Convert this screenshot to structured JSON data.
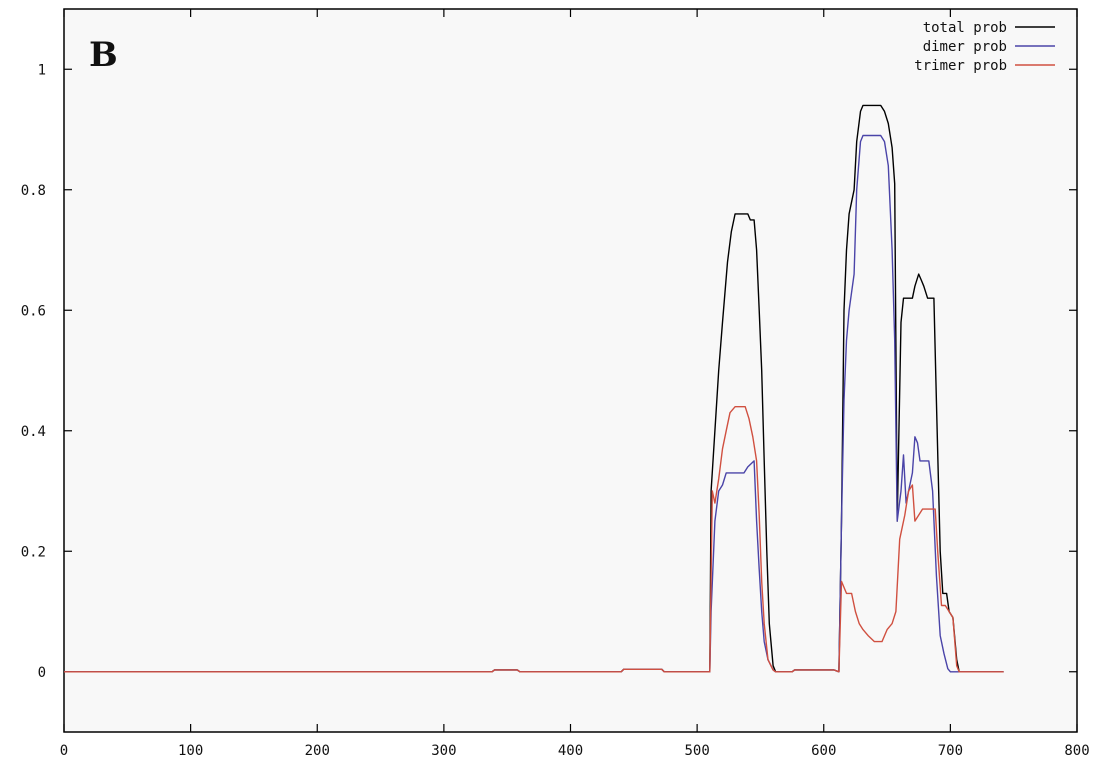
{
  "chart_data": {
    "type": "line",
    "title": "",
    "panel_label": "B",
    "xlabel": "",
    "ylabel": "",
    "xlim": [
      0,
      800
    ],
    "ylim": [
      -0.1,
      1.1
    ],
    "x_ticks": [
      0,
      100,
      200,
      300,
      400,
      500,
      600,
      700,
      800
    ],
    "x_tick_labels": [
      "0",
      "100",
      "200",
      "300",
      "400",
      "500",
      "600",
      "700",
      "800"
    ],
    "y_ticks": [
      0,
      0.2,
      0.4,
      0.6,
      0.8,
      1
    ],
    "y_tick_labels": [
      "0",
      "0.2",
      "0.4",
      "0.6",
      "0.8",
      "1"
    ],
    "grid": false,
    "legend_position": "top-right",
    "series": [
      {
        "name": "total prob",
        "color": "#000000",
        "points": [
          [
            0,
            0
          ],
          [
            338,
            0
          ],
          [
            340,
            0.003
          ],
          [
            358,
            0.003
          ],
          [
            360,
            0
          ],
          [
            440,
            0
          ],
          [
            442,
            0.004
          ],
          [
            472,
            0.004
          ],
          [
            474,
            0
          ],
          [
            510,
            0
          ],
          [
            511,
            0.3
          ],
          [
            514,
            0.4
          ],
          [
            517,
            0.5
          ],
          [
            520,
            0.58
          ],
          [
            522,
            0.63
          ],
          [
            524,
            0.68
          ],
          [
            527,
            0.73
          ],
          [
            530,
            0.76
          ],
          [
            540,
            0.76
          ],
          [
            542,
            0.75
          ],
          [
            545,
            0.75
          ],
          [
            547,
            0.7
          ],
          [
            549,
            0.6
          ],
          [
            551,
            0.5
          ],
          [
            553,
            0.35
          ],
          [
            555,
            0.2
          ],
          [
            557,
            0.08
          ],
          [
            560,
            0.01
          ],
          [
            562,
            0
          ],
          [
            575,
            0
          ],
          [
            577,
            0.003
          ],
          [
            608,
            0.003
          ],
          [
            612,
            0
          ],
          [
            614,
            0.25
          ],
          [
            616,
            0.6
          ],
          [
            618,
            0.7
          ],
          [
            620,
            0.76
          ],
          [
            622,
            0.78
          ],
          [
            624,
            0.8
          ],
          [
            626,
            0.88
          ],
          [
            629,
            0.93
          ],
          [
            631,
            0.94
          ],
          [
            645,
            0.94
          ],
          [
            648,
            0.93
          ],
          [
            651,
            0.91
          ],
          [
            654,
            0.87
          ],
          [
            656,
            0.81
          ],
          [
            658,
            0.25
          ],
          [
            661,
            0.58
          ],
          [
            663,
            0.62
          ],
          [
            670,
            0.62
          ],
          [
            672,
            0.64
          ],
          [
            675,
            0.66
          ],
          [
            677,
            0.65
          ],
          [
            679,
            0.64
          ],
          [
            682,
            0.62
          ],
          [
            687,
            0.62
          ],
          [
            689,
            0.45
          ],
          [
            692,
            0.2
          ],
          [
            694,
            0.13
          ],
          [
            697,
            0.13
          ],
          [
            699,
            0.1
          ],
          [
            702,
            0.09
          ],
          [
            705,
            0.02
          ],
          [
            707,
            0
          ],
          [
            742,
            0
          ]
        ]
      },
      {
        "name": "dimer prob",
        "color": "#4a44a8",
        "points": [
          [
            0,
            0
          ],
          [
            338,
            0
          ],
          [
            340,
            0.003
          ],
          [
            358,
            0.003
          ],
          [
            360,
            0
          ],
          [
            440,
            0
          ],
          [
            442,
            0.004
          ],
          [
            472,
            0.004
          ],
          [
            474,
            0
          ],
          [
            510,
            0
          ],
          [
            511,
            0.1
          ],
          [
            514,
            0.25
          ],
          [
            517,
            0.3
          ],
          [
            520,
            0.31
          ],
          [
            523,
            0.33
          ],
          [
            530,
            0.33
          ],
          [
            537,
            0.33
          ],
          [
            540,
            0.34
          ],
          [
            545,
            0.35
          ],
          [
            547,
            0.25
          ],
          [
            549,
            0.17
          ],
          [
            551,
            0.1
          ],
          [
            553,
            0.05
          ],
          [
            556,
            0.02
          ],
          [
            560,
            0.003
          ],
          [
            562,
            0
          ],
          [
            575,
            0
          ],
          [
            577,
            0.003
          ],
          [
            608,
            0.003
          ],
          [
            612,
            0
          ],
          [
            614,
            0.25
          ],
          [
            616,
            0.45
          ],
          [
            618,
            0.55
          ],
          [
            620,
            0.6
          ],
          [
            622,
            0.63
          ],
          [
            624,
            0.66
          ],
          [
            626,
            0.8
          ],
          [
            629,
            0.88
          ],
          [
            631,
            0.89
          ],
          [
            645,
            0.89
          ],
          [
            648,
            0.88
          ],
          [
            651,
            0.84
          ],
          [
            654,
            0.7
          ],
          [
            656,
            0.55
          ],
          [
            658,
            0.25
          ],
          [
            661,
            0.3
          ],
          [
            663,
            0.36
          ],
          [
            665,
            0.28
          ],
          [
            667,
            0.3
          ],
          [
            670,
            0.33
          ],
          [
            672,
            0.39
          ],
          [
            674,
            0.38
          ],
          [
            676,
            0.35
          ],
          [
            683,
            0.35
          ],
          [
            686,
            0.3
          ],
          [
            689,
            0.16
          ],
          [
            692,
            0.06
          ],
          [
            695,
            0.03
          ],
          [
            698,
            0.005
          ],
          [
            700,
            0
          ],
          [
            742,
            0
          ]
        ]
      },
      {
        "name": "trimer prob",
        "color": "#d05040",
        "points": [
          [
            0,
            0
          ],
          [
            338,
            0
          ],
          [
            340,
            0.003
          ],
          [
            358,
            0.003
          ],
          [
            360,
            0
          ],
          [
            440,
            0
          ],
          [
            442,
            0.004
          ],
          [
            472,
            0.004
          ],
          [
            474,
            0
          ],
          [
            510,
            0
          ],
          [
            512,
            0.3
          ],
          [
            514,
            0.28
          ],
          [
            517,
            0.32
          ],
          [
            520,
            0.37
          ],
          [
            523,
            0.4
          ],
          [
            526,
            0.43
          ],
          [
            530,
            0.44
          ],
          [
            538,
            0.44
          ],
          [
            541,
            0.42
          ],
          [
            544,
            0.39
          ],
          [
            547,
            0.35
          ],
          [
            549,
            0.26
          ],
          [
            551,
            0.15
          ],
          [
            553,
            0.08
          ],
          [
            556,
            0.02
          ],
          [
            560,
            0.003
          ],
          [
            562,
            0
          ],
          [
            575,
            0
          ],
          [
            577,
            0.003
          ],
          [
            608,
            0.003
          ],
          [
            612,
            0
          ],
          [
            614,
            0.15
          ],
          [
            618,
            0.13
          ],
          [
            622,
            0.13
          ],
          [
            625,
            0.1
          ],
          [
            628,
            0.08
          ],
          [
            631,
            0.07
          ],
          [
            635,
            0.06
          ],
          [
            640,
            0.05
          ],
          [
            646,
            0.05
          ],
          [
            650,
            0.07
          ],
          [
            654,
            0.08
          ],
          [
            657,
            0.1
          ],
          [
            660,
            0.22
          ],
          [
            664,
            0.26
          ],
          [
            667,
            0.3
          ],
          [
            670,
            0.31
          ],
          [
            672,
            0.25
          ],
          [
            675,
            0.26
          ],
          [
            678,
            0.27
          ],
          [
            688,
            0.27
          ],
          [
            690,
            0.2
          ],
          [
            693,
            0.11
          ],
          [
            696,
            0.11
          ],
          [
            699,
            0.1
          ],
          [
            702,
            0.09
          ],
          [
            705,
            0.01
          ],
          [
            707,
            0
          ],
          [
            742,
            0
          ]
        ]
      }
    ]
  }
}
